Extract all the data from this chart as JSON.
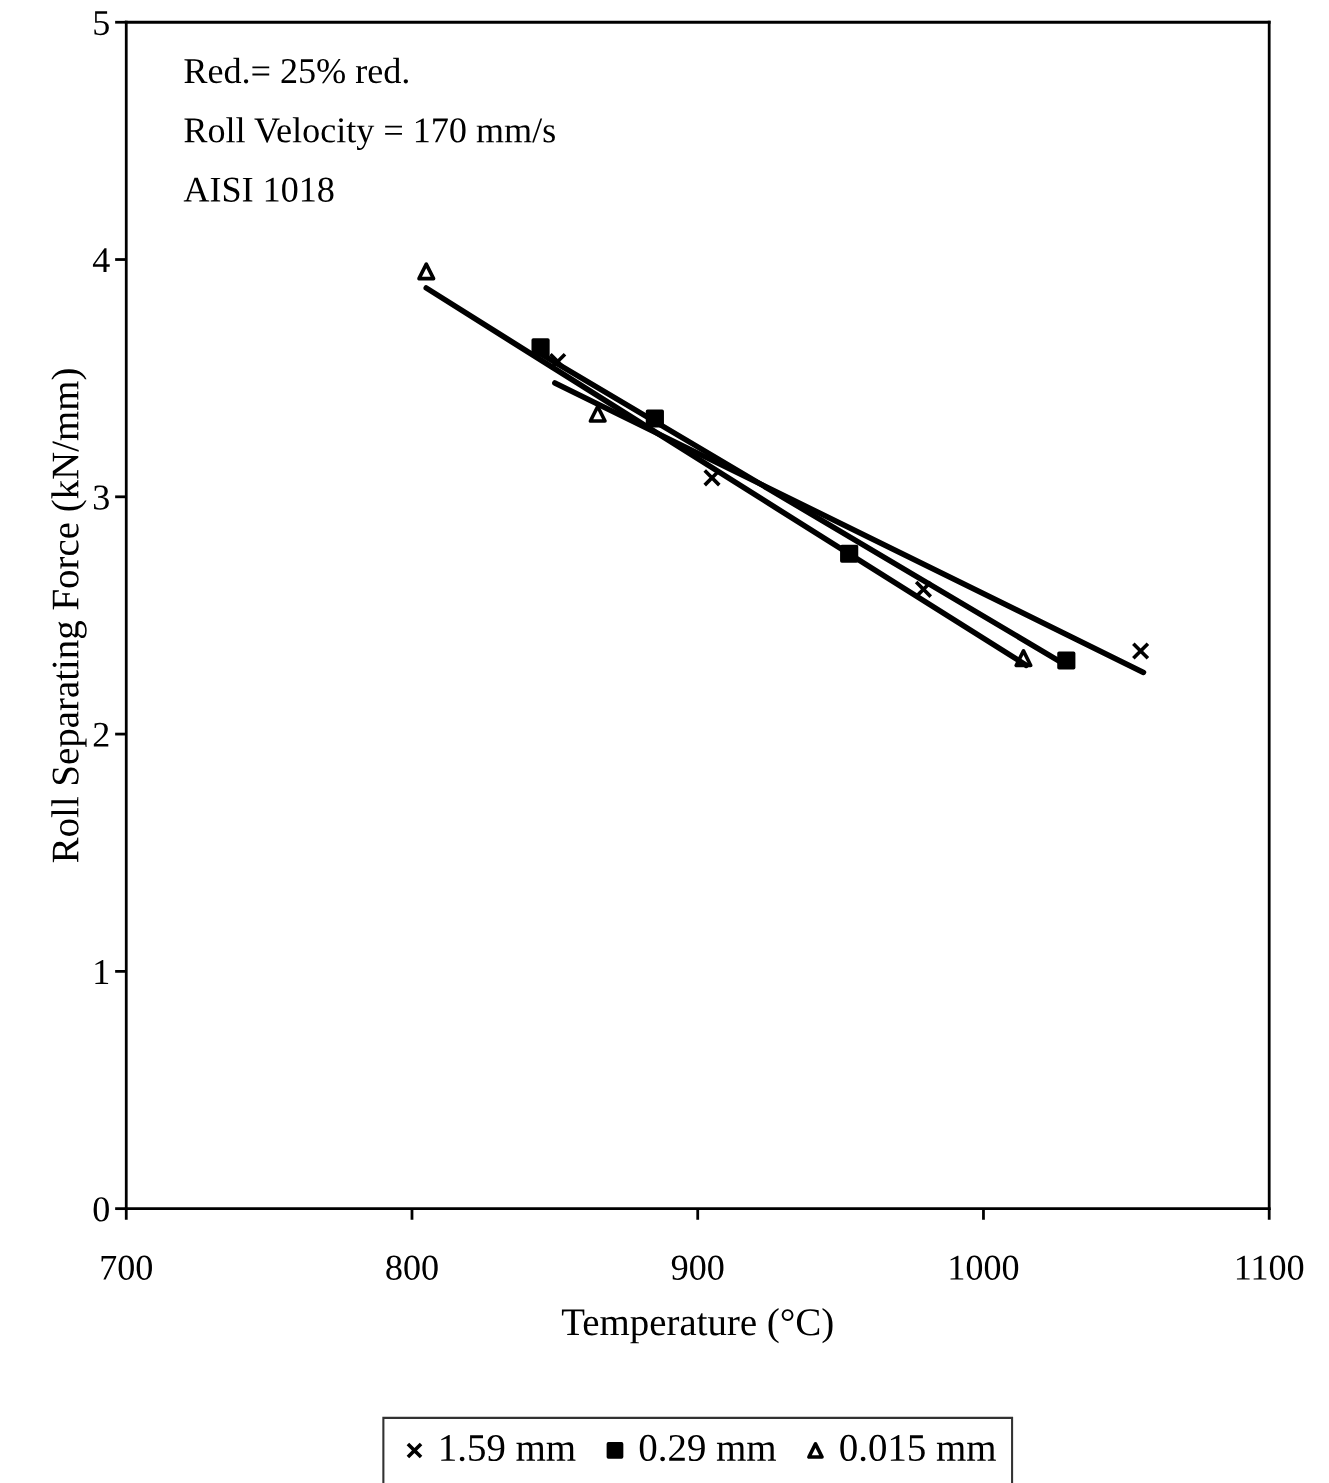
{
  "chart_data": {
    "type": "scatter",
    "xlabel": "Temperature (°C)",
    "ylabel": "Roll Separating Force (kN/mm)",
    "annotations": [
      "Red.= 25% red.",
      "Roll Velocity = 170 mm/s",
      "AISI 1018"
    ],
    "xlim": [
      700,
      1100
    ],
    "xticks": [
      700,
      800,
      900,
      1000,
      1100
    ],
    "ylim": [
      0,
      5
    ],
    "yticks": [
      0,
      1,
      2,
      3,
      4,
      5
    ],
    "grid": false,
    "legend": "bottom",
    "series": [
      {
        "name": "1.59 mm",
        "color": "#000000",
        "marker": "cross",
        "x": [
          851,
          905,
          979,
          1055
        ],
        "values": [
          3.57,
          3.08,
          2.61,
          2.35
        ]
      },
      {
        "name": "0.29 mm",
        "color": "#000000",
        "marker": "square",
        "x": [
          845,
          885,
          953,
          1029
        ],
        "values": [
          3.63,
          3.33,
          2.76,
          2.31
        ]
      },
      {
        "name": "0.015 mm",
        "color": "#000000",
        "marker": "triangle",
        "x": [
          805,
          865,
          1014
        ],
        "values": [
          3.95,
          3.35,
          2.32
        ]
      },
      {
        "type": "line",
        "color": "#000000",
        "x": [
          850,
          1056
        ],
        "values": [
          3.48,
          2.26
        ]
      },
      {
        "type": "line",
        "color": "#000000",
        "x": [
          844,
          1029
        ],
        "values": [
          3.61,
          2.29
        ]
      },
      {
        "type": "line",
        "color": "#000000",
        "x": [
          805,
          1015
        ],
        "values": [
          3.88,
          2.29
        ]
      }
    ]
  }
}
